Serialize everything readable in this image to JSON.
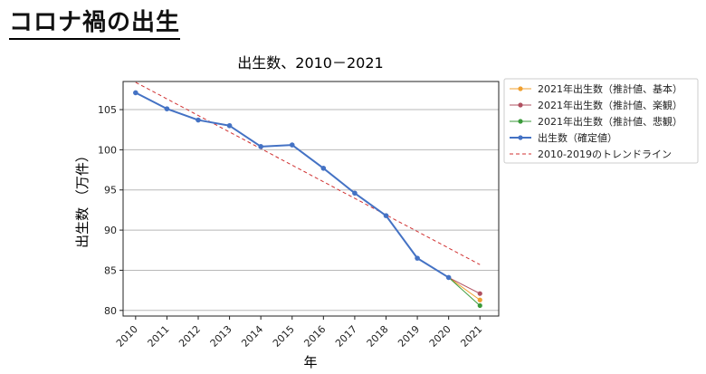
{
  "page": {
    "heading": "コロナ禍の出生"
  },
  "chart_data": {
    "type": "line",
    "title": "出生数、2010－2021",
    "xlabel": "年",
    "ylabel": "出生数 （万件）",
    "x": [
      2010,
      2011,
      2012,
      2013,
      2014,
      2015,
      2016,
      2017,
      2018,
      2019,
      2020,
      2021
    ],
    "xlim": [
      2009.6,
      2021.6
    ],
    "ylim": [
      79.3,
      108.5
    ],
    "yticks": [
      80,
      85,
      90,
      95,
      100,
      105
    ],
    "grid": "horizontal",
    "legend_position": "right-outside-top",
    "series": [
      {
        "name": "出生数（確定値）",
        "color": "#4472c4",
        "x": [
          2010,
          2011,
          2012,
          2013,
          2014,
          2015,
          2016,
          2017,
          2018,
          2019,
          2020
        ],
        "values": [
          107.1,
          105.1,
          103.7,
          103.0,
          100.4,
          100.6,
          97.7,
          94.6,
          91.8,
          86.5,
          84.1
        ]
      },
      {
        "name": "2021年出生数（推計値、基本）",
        "color": "#f0a030",
        "x": [
          2020,
          2021
        ],
        "values": [
          84.1,
          81.3
        ]
      },
      {
        "name": "2021年出生数（推計値、楽観）",
        "color": "#b05060",
        "x": [
          2020,
          2021
        ],
        "values": [
          84.1,
          82.1
        ]
      },
      {
        "name": "2021年出生数（推計値、悲観）",
        "color": "#3a9a3a",
        "x": [
          2020,
          2021
        ],
        "values": [
          84.1,
          80.6
        ]
      }
    ],
    "trendline": {
      "name": "2010-2019のトレンドライン",
      "color": "#d03030",
      "x": [
        2010,
        2021
      ],
      "values": [
        108.4,
        85.7
      ]
    },
    "legend_order": [
      "2021年出生数（推計値、基本）",
      "2021年出生数（推計値、楽観）",
      "2021年出生数（推計値、悲観）",
      "出生数（確定値）",
      "2010-2019のトレンドライン"
    ]
  }
}
